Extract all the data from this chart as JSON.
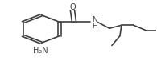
{
  "bond_color": "#404040",
  "bond_width": 1.2,
  "font_size_label": 7.0,
  "nh2_label": "H₂N",
  "o_label": "O",
  "nh_label": "N\nH"
}
